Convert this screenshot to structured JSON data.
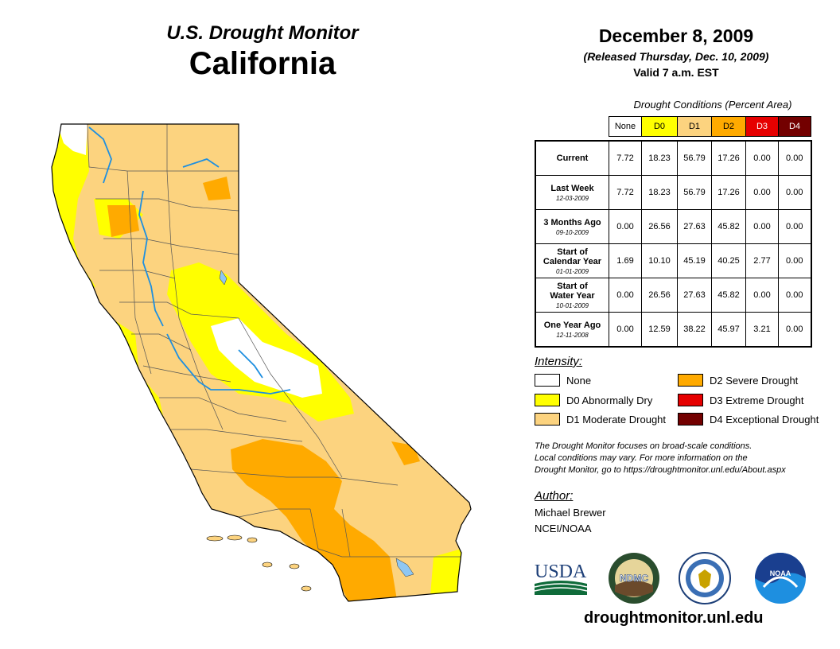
{
  "header": {
    "product": "U.S. Drought Monitor",
    "state": "California"
  },
  "date": {
    "map_date": "December 8, 2009",
    "released": "(Released Thursday, Dec. 10, 2009)",
    "valid": "Valid 7 a.m. EST"
  },
  "table": {
    "caption": "Drought Conditions (Percent Area)",
    "columns": [
      "None",
      "D0",
      "D1",
      "D2",
      "D3",
      "D4"
    ],
    "column_colors": [
      "#ffffff",
      "#ffff00",
      "#fcd37f",
      "#ffaa00",
      "#e60000",
      "#730000"
    ],
    "rows": [
      {
        "label": "Current",
        "label2": "",
        "date": "",
        "values": [
          "7.72",
          "18.23",
          "56.79",
          "17.26",
          "0.00",
          "0.00"
        ]
      },
      {
        "label": "Last Week",
        "label2": "",
        "date": "12-03-2009",
        "values": [
          "7.72",
          "18.23",
          "56.79",
          "17.26",
          "0.00",
          "0.00"
        ]
      },
      {
        "label": "3 Months Ago",
        "label2": "",
        "date": "09-10-2009",
        "values": [
          "0.00",
          "26.56",
          "27.63",
          "45.82",
          "0.00",
          "0.00"
        ]
      },
      {
        "label": "Start of",
        "label2": "Calendar Year",
        "date": "01-01-2009",
        "values": [
          "1.69",
          "10.10",
          "45.19",
          "40.25",
          "2.77",
          "0.00"
        ]
      },
      {
        "label": "Start of",
        "label2": "Water Year",
        "date": "10-01-2009",
        "values": [
          "0.00",
          "26.56",
          "27.63",
          "45.82",
          "0.00",
          "0.00"
        ]
      },
      {
        "label": "One Year Ago",
        "label2": "",
        "date": "12-11-2008",
        "values": [
          "0.00",
          "12.59",
          "38.22",
          "45.97",
          "3.21",
          "0.00"
        ]
      }
    ]
  },
  "legend": {
    "heading": "Intensity:",
    "items": [
      {
        "label": "None",
        "color": "#ffffff"
      },
      {
        "label": "D0 Abnormally Dry",
        "color": "#ffff00"
      },
      {
        "label": "D1 Moderate Drought",
        "color": "#fcd37f"
      },
      {
        "label": "D2 Severe Drought",
        "color": "#ffaa00"
      },
      {
        "label": "D3 Extreme Drought",
        "color": "#e60000"
      },
      {
        "label": "D4 Exceptional Drought",
        "color": "#730000"
      }
    ]
  },
  "note": {
    "line1": "The Drought Monitor focuses on broad-scale conditions.",
    "line2": "Local conditions may vary. For more information on the",
    "line3": "Drought Monitor, go to https://droughtmonitor.unl.edu/About.aspx"
  },
  "author": {
    "heading": "Author:",
    "name": "Michael Brewer",
    "org": "NCEI/NOAA"
  },
  "logos": {
    "usda": "USDA",
    "ndmc": "NDMC",
    "noaa": "NOAA"
  },
  "website": "droughtmonitor.unl.edu",
  "colors": {
    "water": "#8fc7f2",
    "river": "#1e8fe0"
  }
}
